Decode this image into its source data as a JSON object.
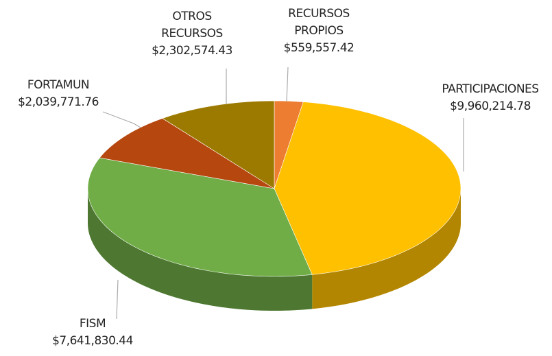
{
  "chart_data": {
    "type": "pie",
    "categories": [
      "RECURSOS PROPIOS",
      "PARTICIPACIONES",
      "FISM",
      "FORTAMUN",
      "OTROS RECURSOS"
    ],
    "values": [
      559557.42,
      9960214.78,
      7641830.44,
      2039771.76,
      2302574.43
    ],
    "value_labels": [
      "$559,557.42",
      "$9,960,214.78",
      "$7,641,830.44",
      "$2,039,771.76",
      "$2,302,574.43"
    ],
    "colors": [
      "#ED7D31",
      "#FFC000",
      "#70AD47",
      "#B5470F",
      "#9C7A00"
    ]
  }
}
